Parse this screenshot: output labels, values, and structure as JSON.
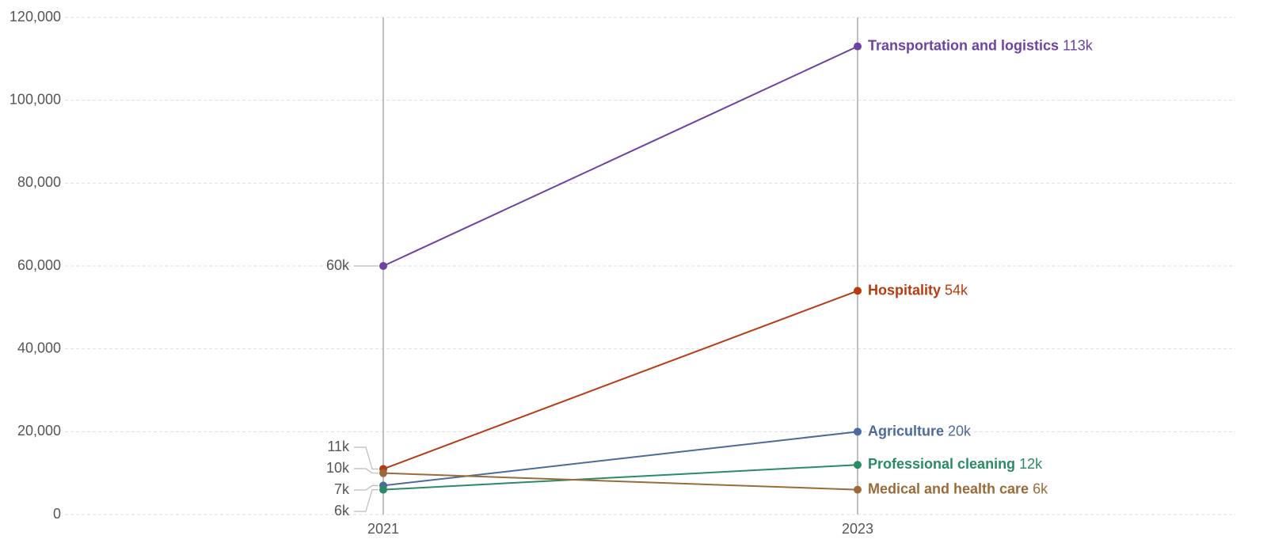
{
  "chart_data": {
    "type": "slope",
    "categories": [
      "2021",
      "2023"
    ],
    "series": [
      {
        "name": "Transportation and logistics",
        "color": "#6e42a3",
        "values": [
          60000,
          113000
        ],
        "value_labels": [
          "60k",
          "113k"
        ]
      },
      {
        "name": "Hospitality",
        "color": "#b83a12",
        "values": [
          11000,
          54000
        ],
        "value_labels": [
          "11k",
          "54k"
        ]
      },
      {
        "name": "Agriculture",
        "color": "#4c6a9c",
        "values": [
          7000,
          20000
        ],
        "value_labels": [
          "7k",
          "20k"
        ]
      },
      {
        "name": "Professional cleaning",
        "color": "#2a8a64",
        "values": [
          6000,
          12000
        ],
        "value_labels": [
          "6k",
          "12k"
        ]
      },
      {
        "name": "Medical and health care",
        "color": "#9a6b3a",
        "values": [
          10000,
          6000
        ],
        "value_labels": [
          "10k",
          "6k"
        ]
      }
    ],
    "ylim": [
      0,
      120000
    ],
    "yticks": [
      0,
      {
        "value": 20000,
        "label": "20,000"
      },
      {
        "value": 40000,
        "label": "40,000"
      },
      {
        "value": 60000,
        "label": "60,000"
      },
      {
        "value": 80000,
        "label": "80,000"
      },
      {
        "value": 100000,
        "label": "100,000"
      },
      {
        "value": 120000,
        "label": "120,000"
      }
    ],
    "grid": true
  }
}
